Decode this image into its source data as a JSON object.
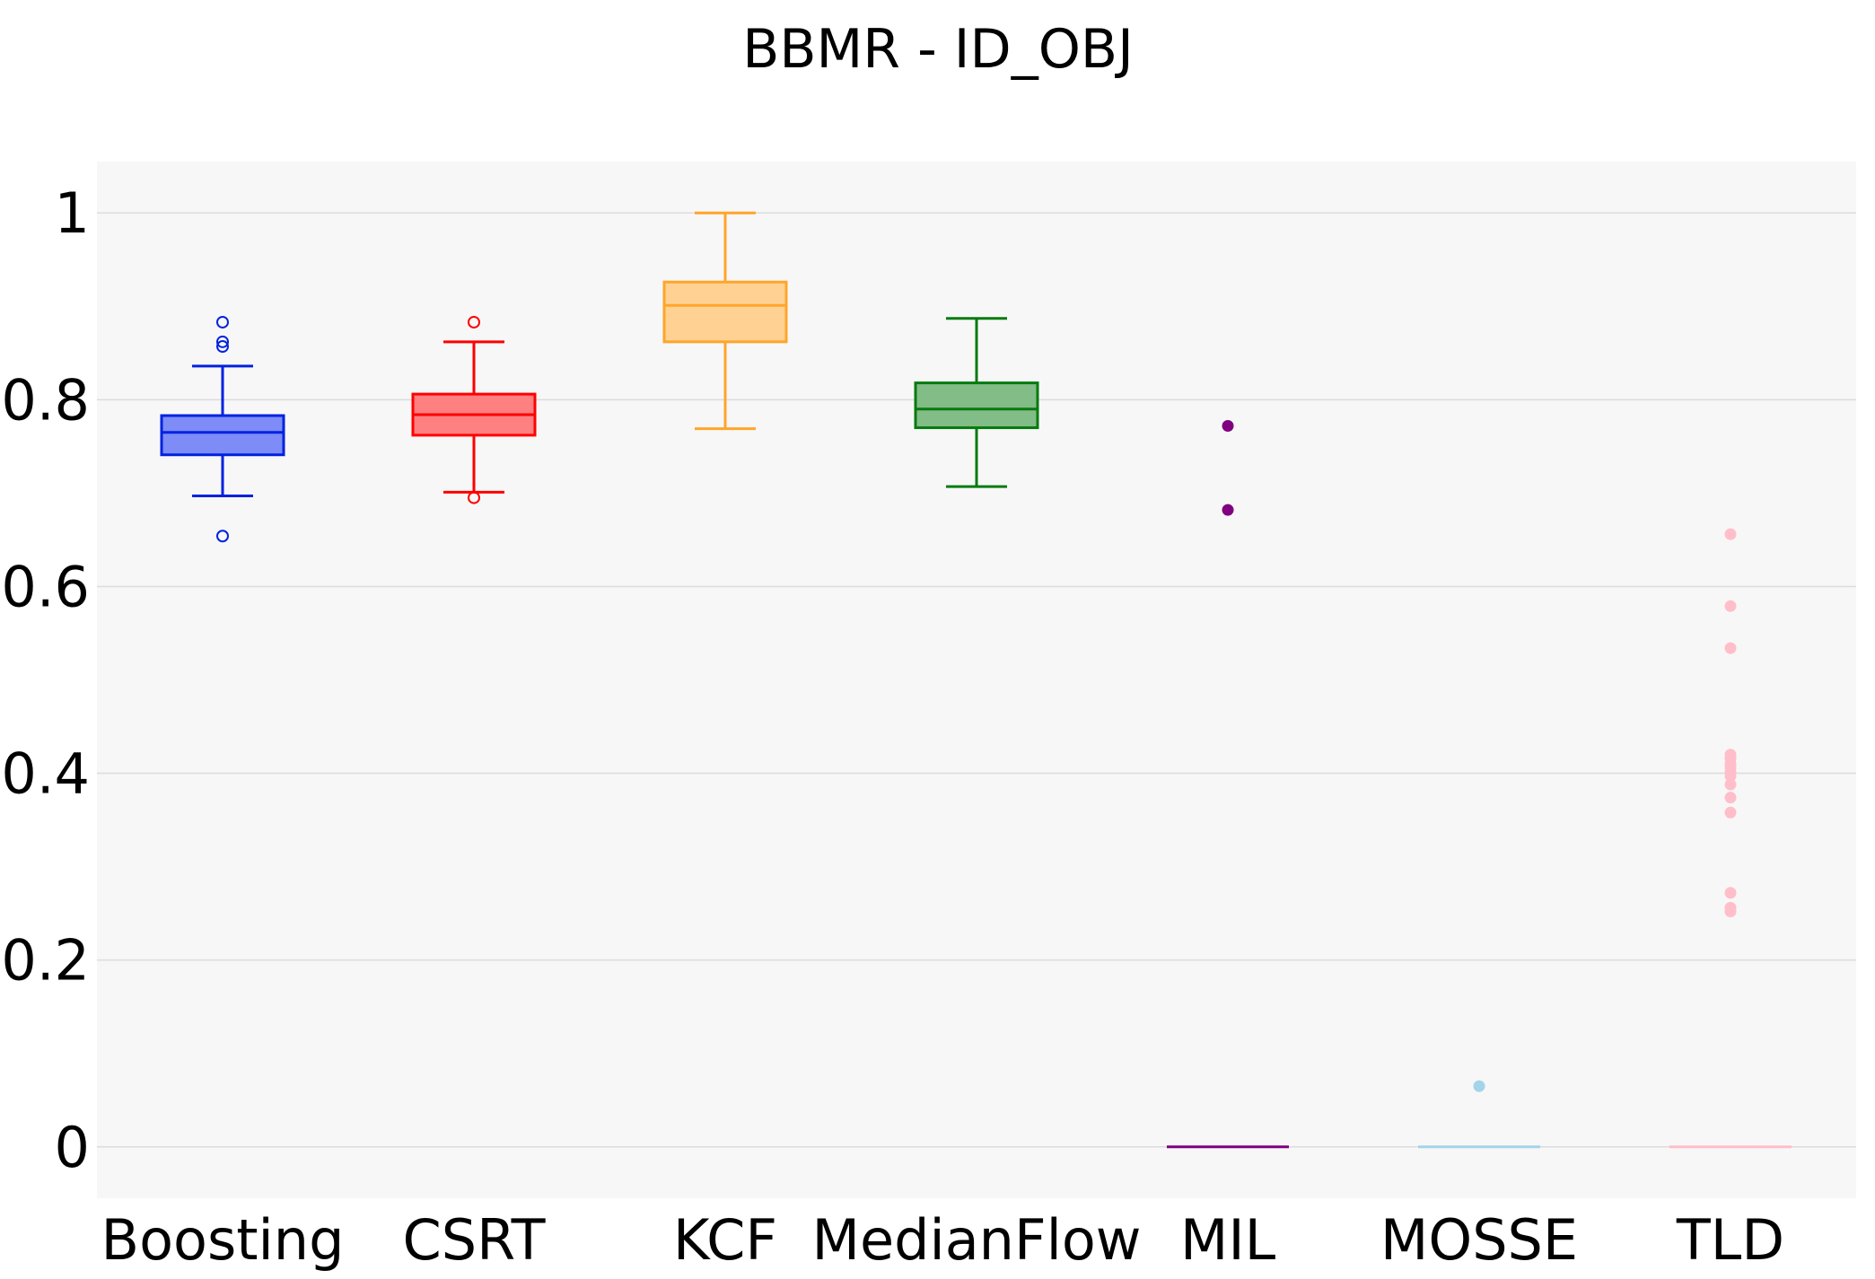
{
  "chart_data": {
    "type": "box",
    "title": "BBMR - ID_OBJ",
    "xlabel": "",
    "ylabel": "",
    "ylim": [
      -0.055,
      1.055
    ],
    "yticks": [
      0,
      0.2,
      0.4,
      0.6,
      0.8,
      1
    ],
    "ytick_labels": [
      "0",
      "0.2",
      "0.4",
      "0.6",
      "0.8",
      "1"
    ],
    "grid": "horizontal",
    "background": "#f7f7f7",
    "categories": [
      "Boosting",
      "CSRT",
      "KCF",
      "MedianFlow",
      "MIL",
      "MOSSE",
      "TLD"
    ],
    "series": [
      {
        "name": "Boosting",
        "color": "#0022e0",
        "fill": "#7e8cf7",
        "min": 0.697,
        "q1": 0.741,
        "median": 0.765,
        "q3": 0.783,
        "max": 0.836,
        "outliers": [
          0.883,
          0.862,
          0.857,
          0.654
        ],
        "outlier_style": "hollow"
      },
      {
        "name": "CSRT",
        "color": "#ff0000",
        "fill": "#ff8080",
        "min": 0.701,
        "q1": 0.762,
        "median": 0.784,
        "q3": 0.806,
        "max": 0.862,
        "outliers": [
          0.883,
          0.695
        ],
        "outlier_style": "hollow"
      },
      {
        "name": "KCF",
        "color": "#ffa52a",
        "fill": "#ffd294",
        "min": 0.769,
        "q1": 0.862,
        "median": 0.901,
        "q3": 0.926,
        "max": 1.0,
        "outliers": [],
        "outlier_style": "hollow"
      },
      {
        "name": "MedianFlow",
        "color": "#067a0e",
        "fill": "#82bc86",
        "min": 0.707,
        "q1": 0.77,
        "median": 0.79,
        "q3": 0.818,
        "max": 0.887,
        "outliers": [],
        "outlier_style": "hollow"
      },
      {
        "name": "MIL",
        "color": "#800080",
        "fill": "#800080",
        "min": 0,
        "q1": 0,
        "median": 0,
        "q3": 0,
        "max": 0,
        "outliers": [
          0.772,
          0.682
        ],
        "outlier_style": "filled"
      },
      {
        "name": "MOSSE",
        "color": "#a3d4e8",
        "fill": "#a3d4e8",
        "min": 0,
        "q1": 0,
        "median": 0,
        "q3": 0,
        "max": 0,
        "outliers": [
          0.065
        ],
        "outlier_style": "filled"
      },
      {
        "name": "TLD",
        "color": "#ffbec9",
        "fill": "#ffbec9",
        "min": 0,
        "q1": 0,
        "median": 0,
        "q3": 0,
        "max": 0,
        "outliers": [
          0.656,
          0.579,
          0.534,
          0.42,
          0.416,
          0.41,
          0.406,
          0.401,
          0.397,
          0.388,
          0.374,
          0.358,
          0.272,
          0.256,
          0.252
        ],
        "outlier_style": "filled"
      }
    ]
  }
}
